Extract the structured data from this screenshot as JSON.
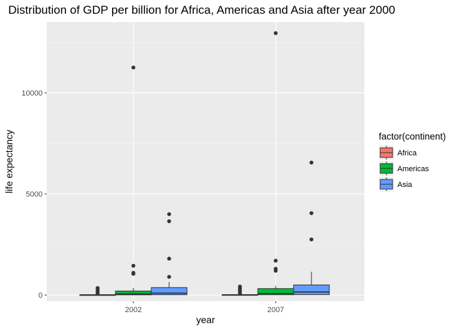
{
  "chart_data": {
    "type": "boxplot",
    "title": "Distribution of GDP per billion for Africa, Americas and Asia after year 2000",
    "xlabel": "year",
    "ylabel": "life expectancy",
    "categories": [
      "2002",
      "2007"
    ],
    "y_ticks": [
      0,
      5000,
      10000
    ],
    "ylim": [
      -300,
      13500
    ],
    "grid": true,
    "legend": {
      "title": "factor(continent)",
      "placement": "right"
    },
    "series": [
      {
        "name": "Africa",
        "color": "#F8766D",
        "boxes": [
          {
            "category": "2002",
            "lower_whisker": 0,
            "q1": 1,
            "median": 5,
            "q3": 15,
            "upper_whisker": 35,
            "outliers": [
              80,
              150,
              200,
              280,
              350
            ]
          },
          {
            "category": "2007",
            "lower_whisker": 0,
            "q1": 2,
            "median": 8,
            "q3": 20,
            "upper_whisker": 45,
            "outliers": [
              90,
              180,
              250,
              330,
              420
            ]
          }
        ]
      },
      {
        "name": "Americas",
        "color": "#00BA38",
        "boxes": [
          {
            "category": "2002",
            "lower_whisker": 1,
            "q1": 10,
            "median": 50,
            "q3": 200,
            "upper_whisker": 350,
            "outliers": [
              1050,
              1100,
              1450,
              11250
            ]
          },
          {
            "category": "2007",
            "lower_whisker": 1,
            "q1": 15,
            "median": 70,
            "q3": 320,
            "upper_whisker": 450,
            "outliers": [
              1200,
              1300,
              1700,
              12950
            ]
          }
        ]
      },
      {
        "name": "Asia",
        "color": "#619CFF",
        "boxes": [
          {
            "category": "2002",
            "lower_whisker": 1,
            "q1": 15,
            "median": 90,
            "q3": 370,
            "upper_whisker": 650,
            "outliers": [
              900,
              1800,
              3650,
              4000
            ]
          },
          {
            "category": "2007",
            "lower_whisker": 2,
            "q1": 20,
            "median": 150,
            "q3": 500,
            "upper_whisker": 1150,
            "outliers": [
              2750,
              4050,
              6550
            ]
          }
        ]
      }
    ]
  }
}
